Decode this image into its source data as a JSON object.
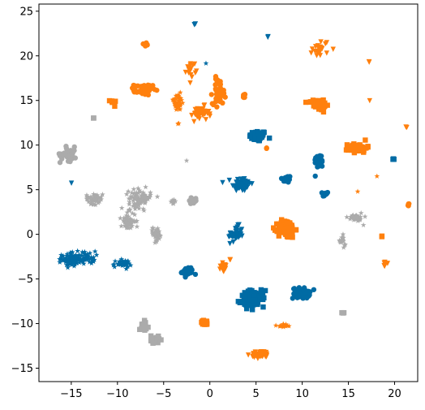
{
  "chart_data": {
    "type": "scatter",
    "title": "",
    "xlabel": "",
    "ylabel": "",
    "xlim": [
      -18.5,
      22.5
    ],
    "ylim": [
      -16.5,
      25.8
    ],
    "xticks": [
      -15,
      -10,
      -5,
      0,
      5,
      10,
      15,
      20
    ],
    "yticks": [
      -15,
      -10,
      -5,
      0,
      5,
      10,
      15,
      20,
      25
    ],
    "xtick_labels": [
      "−15",
      "−10",
      "−5",
      "0",
      "5",
      "10",
      "15",
      "20"
    ],
    "ytick_labels": [
      "−15",
      "−10",
      "−5",
      "0",
      "5",
      "10",
      "15",
      "20",
      "25"
    ],
    "grid": false,
    "series": [
      {
        "color": "#006ba4",
        "clusters": [
          {
            "x": 5.2,
            "y": 11.0,
            "sx": 0.9,
            "sy": 0.6,
            "n": 60,
            "marker": "square"
          },
          {
            "x": 3.4,
            "y": 5.6,
            "sx": 1.0,
            "sy": 0.8,
            "n": 60,
            "marker": "triangle-down"
          },
          {
            "x": 8.3,
            "y": 6.2,
            "sx": 0.5,
            "sy": 0.4,
            "n": 30,
            "marker": "circle"
          },
          {
            "x": 11.8,
            "y": 8.2,
            "sx": 0.5,
            "sy": 0.8,
            "n": 35,
            "marker": "circle"
          },
          {
            "x": 12.5,
            "y": 4.5,
            "sx": 0.3,
            "sy": 0.3,
            "n": 12,
            "marker": "circle"
          },
          {
            "x": 2.8,
            "y": 0.0,
            "sx": 0.8,
            "sy": 0.9,
            "n": 40,
            "marker": "triangle-down"
          },
          {
            "x": -15.0,
            "y": -2.8,
            "sx": 1.0,
            "sy": 0.8,
            "n": 80,
            "marker": "star"
          },
          {
            "x": -13.2,
            "y": -2.6,
            "sx": 0.8,
            "sy": 0.7,
            "n": 40,
            "marker": "star"
          },
          {
            "x": -9.5,
            "y": -3.3,
            "sx": 1.0,
            "sy": 0.4,
            "n": 35,
            "marker": "star"
          },
          {
            "x": -2.4,
            "y": -4.2,
            "sx": 0.6,
            "sy": 0.5,
            "n": 40,
            "marker": "circle"
          },
          {
            "x": 4.6,
            "y": -7.2,
            "sx": 1.3,
            "sy": 0.9,
            "n": 90,
            "marker": "square"
          },
          {
            "x": 9.9,
            "y": -6.6,
            "sx": 0.9,
            "sy": 0.6,
            "n": 55,
            "marker": "circle"
          },
          {
            "x": -1.6,
            "y": 23.5,
            "sx": 0.1,
            "sy": 0.1,
            "n": 3,
            "marker": "triangle-down"
          },
          {
            "x": 6.3,
            "y": 22.1,
            "sx": 0.05,
            "sy": 0.05,
            "n": 2,
            "marker": "triangle-down"
          },
          {
            "x": -0.4,
            "y": 19.2,
            "sx": 0.05,
            "sy": 0.05,
            "n": 1,
            "marker": "star"
          },
          {
            "x": -15.0,
            "y": 5.7,
            "sx": 0.05,
            "sy": 0.05,
            "n": 1,
            "marker": "triangle-down"
          },
          {
            "x": 19.9,
            "y": 8.4,
            "sx": 0.1,
            "sy": 0.1,
            "n": 3,
            "marker": "square"
          }
        ]
      },
      {
        "color": "#ff800e",
        "clusters": [
          {
            "x": -7.0,
            "y": 21.3,
            "sx": 0.3,
            "sy": 0.2,
            "n": 8,
            "marker": "circle"
          },
          {
            "x": 12.0,
            "y": 20.8,
            "sx": 0.9,
            "sy": 1.0,
            "n": 25,
            "marker": "triangle-down"
          },
          {
            "x": -2.0,
            "y": 18.5,
            "sx": 0.5,
            "sy": 0.8,
            "n": 15,
            "marker": "triangle-down"
          },
          {
            "x": 17.2,
            "y": 19.3,
            "sx": 0.1,
            "sy": 0.1,
            "n": 2,
            "marker": "triangle-down"
          },
          {
            "x": -7.2,
            "y": 16.2,
            "sx": 1.0,
            "sy": 0.6,
            "n": 50,
            "marker": "circle"
          },
          {
            "x": -10.5,
            "y": 14.8,
            "sx": 0.3,
            "sy": 0.3,
            "n": 8,
            "marker": "square"
          },
          {
            "x": -3.5,
            "y": 14.8,
            "sx": 0.8,
            "sy": 1.0,
            "n": 35,
            "marker": "star"
          },
          {
            "x": 1.0,
            "y": 16.0,
            "sx": 0.7,
            "sy": 1.4,
            "n": 45,
            "marker": "circle"
          },
          {
            "x": -1.0,
            "y": 13.5,
            "sx": 0.9,
            "sy": 0.8,
            "n": 40,
            "marker": "triangle-down"
          },
          {
            "x": 3.7,
            "y": 15.5,
            "sx": 0.2,
            "sy": 0.3,
            "n": 8,
            "marker": "circle"
          },
          {
            "x": 11.8,
            "y": 14.5,
            "sx": 1.1,
            "sy": 0.6,
            "n": 45,
            "marker": "square"
          },
          {
            "x": 16.0,
            "y": 9.7,
            "sx": 1.0,
            "sy": 0.5,
            "n": 60,
            "marker": "square"
          },
          {
            "x": 8.3,
            "y": 0.6,
            "sx": 0.9,
            "sy": 1.0,
            "n": 110,
            "marker": "square"
          },
          {
            "x": 1.5,
            "y": -3.8,
            "sx": 0.5,
            "sy": 0.6,
            "n": 15,
            "marker": "triangle-down"
          },
          {
            "x": -0.5,
            "y": -9.9,
            "sx": 0.6,
            "sy": 0.25,
            "n": 20,
            "marker": "square"
          },
          {
            "x": 8.0,
            "y": -10.2,
            "sx": 0.7,
            "sy": 0.2,
            "n": 15,
            "marker": "star"
          },
          {
            "x": 5.5,
            "y": -13.5,
            "sx": 1.0,
            "sy": 0.4,
            "n": 40,
            "marker": "triangle-down"
          },
          {
            "x": 19.0,
            "y": -3.3,
            "sx": 0.3,
            "sy": 0.3,
            "n": 6,
            "marker": "triangle-down"
          },
          {
            "x": 21.3,
            "y": 12.0,
            "sx": 0.1,
            "sy": 0.1,
            "n": 2,
            "marker": "triangle-down"
          },
          {
            "x": 21.5,
            "y": 3.3,
            "sx": 0.2,
            "sy": 0.2,
            "n": 4,
            "marker": "circle"
          },
          {
            "x": 18.6,
            "y": -0.2,
            "sx": 0.1,
            "sy": 0.1,
            "n": 2,
            "marker": "square"
          },
          {
            "x": 17.3,
            "y": 15.0,
            "sx": 0.05,
            "sy": 0.05,
            "n": 1,
            "marker": "triangle-down"
          },
          {
            "x": 6.1,
            "y": 9.7,
            "sx": 0.1,
            "sy": 0.1,
            "n": 2,
            "marker": "circle"
          },
          {
            "x": 16.0,
            "y": 4.8,
            "sx": 0.05,
            "sy": 0.05,
            "n": 1,
            "marker": "star"
          },
          {
            "x": 18.1,
            "y": 6.5,
            "sx": 0.05,
            "sy": 0.05,
            "n": 1,
            "marker": "star"
          },
          {
            "x": 2.2,
            "y": -2.8,
            "sx": 0.1,
            "sy": 0.1,
            "n": 2,
            "marker": "triangle-down"
          },
          {
            "x": -3.4,
            "y": 12.4,
            "sx": 0.1,
            "sy": 0.1,
            "n": 2,
            "marker": "star"
          }
        ]
      },
      {
        "color": "#ababab",
        "clusters": [
          {
            "x": -15.3,
            "y": 9.0,
            "sx": 0.9,
            "sy": 0.8,
            "n": 40,
            "marker": "circle"
          },
          {
            "x": -12.5,
            "y": 4.0,
            "sx": 0.9,
            "sy": 0.6,
            "n": 50,
            "marker": "star"
          },
          {
            "x": -7.6,
            "y": 4.0,
            "sx": 1.2,
            "sy": 1.0,
            "n": 90,
            "marker": "star"
          },
          {
            "x": -8.8,
            "y": 1.5,
            "sx": 0.8,
            "sy": 1.0,
            "n": 50,
            "marker": "star"
          },
          {
            "x": -5.8,
            "y": 0.0,
            "sx": 0.6,
            "sy": 0.8,
            "n": 35,
            "marker": "star"
          },
          {
            "x": -4.0,
            "y": 3.6,
            "sx": 0.3,
            "sy": 0.3,
            "n": 10,
            "marker": "star"
          },
          {
            "x": -1.8,
            "y": 3.8,
            "sx": 0.4,
            "sy": 0.4,
            "n": 25,
            "marker": "circle"
          },
          {
            "x": -12.6,
            "y": 13.0,
            "sx": 0.05,
            "sy": 0.05,
            "n": 2,
            "marker": "square"
          },
          {
            "x": -2.5,
            "y": 8.3,
            "sx": 0.05,
            "sy": 0.05,
            "n": 1,
            "marker": "star"
          },
          {
            "x": 15.8,
            "y": 1.9,
            "sx": 0.8,
            "sy": 0.6,
            "n": 30,
            "marker": "star"
          },
          {
            "x": 14.3,
            "y": -0.8,
            "sx": 0.4,
            "sy": 0.6,
            "n": 15,
            "marker": "star"
          },
          {
            "x": 14.4,
            "y": -8.8,
            "sx": 0.1,
            "sy": 0.1,
            "n": 3,
            "marker": "square"
          },
          {
            "x": -7.0,
            "y": -10.2,
            "sx": 0.4,
            "sy": 0.5,
            "n": 20,
            "marker": "square"
          },
          {
            "x": -6.0,
            "y": -11.8,
            "sx": 0.5,
            "sy": 0.6,
            "n": 25,
            "marker": "square"
          }
        ]
      }
    ]
  }
}
